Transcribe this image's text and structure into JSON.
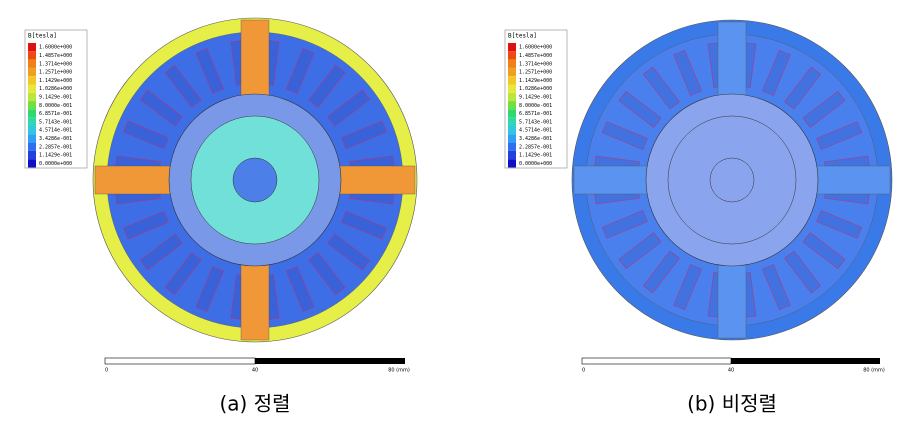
{
  "panels": [
    {
      "legend": {
        "title": "B[tesla]",
        "values": [
          "1.6000e+000",
          "1.4857e+000",
          "1.3714e+000",
          "1.2571e+000",
          "1.1429e+000",
          "1.0286e+000",
          "9.1429e-001",
          "8.0000e-001",
          "6.8571e-001",
          "5.7143e-001",
          "4.5714e-001",
          "3.4286e-001",
          "2.2857e-001",
          "1.1429e-001",
          "0.0000e+000"
        ]
      },
      "scale": {
        "labels": [
          "0",
          "40",
          "80 (mm)"
        ]
      },
      "caption": "(a) 정렬"
    },
    {
      "legend": {
        "title": "B[tesla]",
        "values": [
          "1.6000e+000",
          "1.4857e+000",
          "1.3714e+000",
          "1.2571e+000",
          "1.1429e+000",
          "1.0286e+000",
          "9.1429e-001",
          "8.0000e-001",
          "6.8571e-001",
          "5.7143e-001",
          "4.5714e-001",
          "3.4286e-001",
          "2.2857e-001",
          "1.1429e-001",
          "0.0000e+000"
        ]
      },
      "scale": {
        "labels": [
          "0",
          "40",
          "80 (mm)"
        ]
      },
      "caption": "(b) 비정렬"
    }
  ]
}
